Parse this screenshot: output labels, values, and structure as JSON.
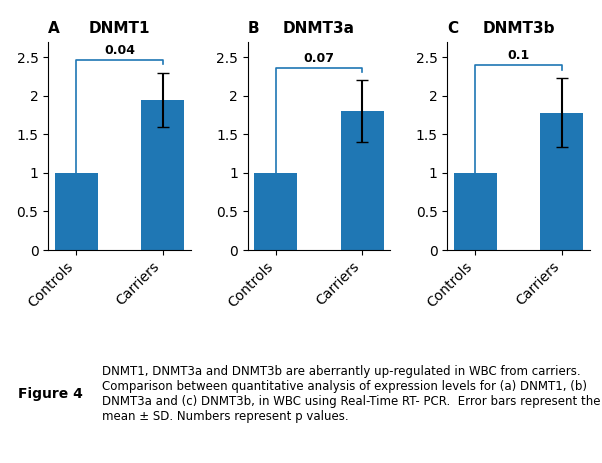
{
  "chart_data": [
    {
      "type": "bar",
      "panel_label": "A",
      "title": "DNMT1",
      "categories": [
        "Controls",
        "Carriers"
      ],
      "values": [
        1.0,
        1.95
      ],
      "errors": [
        null,
        0.35
      ],
      "annotation": "0.04",
      "ylim": [
        0,
        2.7
      ],
      "yticks": [
        0,
        0.5,
        1,
        1.5,
        2,
        2.5
      ],
      "grid": false
    },
    {
      "type": "bar",
      "panel_label": "B",
      "title": "DNMT3a",
      "categories": [
        "Controls",
        "Carriers"
      ],
      "values": [
        1.0,
        1.8
      ],
      "errors": [
        null,
        0.4
      ],
      "annotation": "0.07",
      "ylim": [
        0,
        2.7
      ],
      "yticks": [
        0,
        0.5,
        1,
        1.5,
        2,
        2.5
      ],
      "grid": false
    },
    {
      "type": "bar",
      "panel_label": "C",
      "title": "DNMT3b",
      "categories": [
        "Controls",
        "Carriers"
      ],
      "values": [
        1.0,
        1.78
      ],
      "errors": [
        null,
        0.45
      ],
      "annotation": "0.1",
      "ylim": [
        0,
        2.7
      ],
      "yticks": [
        0,
        0.5,
        1,
        1.5,
        2,
        2.5
      ],
      "grid": false
    }
  ],
  "figure_label": "Figure 4",
  "caption": "DNMT1, DNMT3a and DNMT3b are aberrantly up-regulated in WBC from carriers. Comparison between quantitative analysis of expression levels for (a) DNMT1, (b) DNMT3a and (c) DNMT3b, in WBC using Real-Time RT- PCR.  Error bars represent the mean ± SD. Numbers represent p values."
}
